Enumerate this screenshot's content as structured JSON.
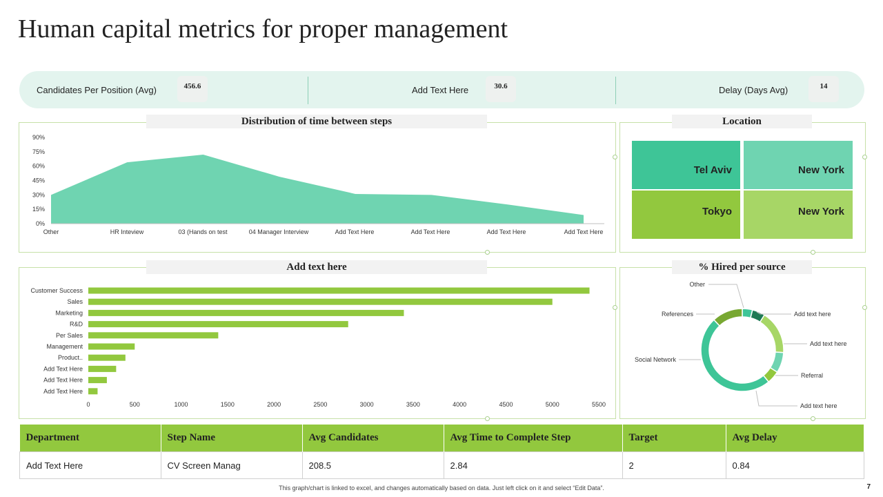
{
  "title": "Human capital metrics for proper management",
  "kpis": [
    {
      "label": "Candidates  Per Position (Avg)",
      "value": "456.6"
    },
    {
      "label": "Add Text Here",
      "value": "30.6"
    },
    {
      "label": "Delay (Days Avg)",
      "value": "14"
    }
  ],
  "panels": {
    "distribution_title": "Distribution of time between steps",
    "location_title": "Location",
    "bar_title": "Add text here",
    "donut_title": "% Hired per source"
  },
  "location": {
    "cells": [
      "Tel Aviv",
      "New York",
      "Tokyo",
      "New York"
    ],
    "colors": [
      "#3ec597",
      "#6fd4b1",
      "#92c83e",
      "#a7d666"
    ]
  },
  "chart_data": [
    {
      "type": "area",
      "title": "Distribution of time between steps",
      "categories": [
        "Other",
        "HR Inteview",
        "03 (Hands on test",
        "04 Manager Interview",
        "Add Text Here",
        "Add Text Here",
        "Add Text Here",
        "Add Text Here"
      ],
      "values": [
        30,
        64,
        72,
        49,
        31,
        30,
        20,
        9
      ],
      "y_ticks": [
        "0%",
        "15%",
        "30%",
        "45%",
        "60%",
        "75%",
        "90%"
      ],
      "ylim": [
        0,
        90
      ],
      "color": "#6fd4b1"
    },
    {
      "type": "bar",
      "orientation": "horizontal",
      "title": "Add text here",
      "categories": [
        "Customer Success",
        "Sales",
        "Marketing",
        "R&D",
        "Per Sales",
        "Management",
        "Product..",
        "Add Text Here",
        "Add Text Here",
        "Add Text Here"
      ],
      "values": [
        5400,
        5000,
        3400,
        2800,
        1400,
        500,
        400,
        300,
        200,
        100
      ],
      "x_ticks": [
        "0",
        "500",
        "1000",
        "1500",
        "2000",
        "2500",
        "3000",
        "3500",
        "4000",
        "4500",
        "5000",
        "5500"
      ],
      "xlim": [
        0,
        5500
      ],
      "color": "#92c83e"
    },
    {
      "type": "pie",
      "donut": true,
      "title": "% Hired per source",
      "labels": [
        "Other",
        "Add text here",
        "Add text here",
        "Referral",
        "Add text here",
        "Social Network",
        "References"
      ],
      "values": [
        4,
        5,
        17,
        8,
        5,
        49,
        12
      ],
      "colors": [
        "#3ec597",
        "#1e7a55",
        "#a7d666",
        "#6fd4b1",
        "#92c83e",
        "#3ec597",
        "#78a832"
      ]
    }
  ],
  "table": {
    "headers": [
      "Department",
      "Step Name",
      "Avg Candidates",
      "Avg Time to Complete Step",
      "Target",
      "Avg Delay"
    ],
    "rows": [
      [
        "Add Text Here",
        "CV Screen Manag",
        "208.5",
        "2.84",
        "2",
        "0.84"
      ]
    ]
  },
  "footer": "This graph/chart is linked to excel, and changes automatically based on data. Just left click on it and select “Edit Data”.",
  "page_number": "7"
}
